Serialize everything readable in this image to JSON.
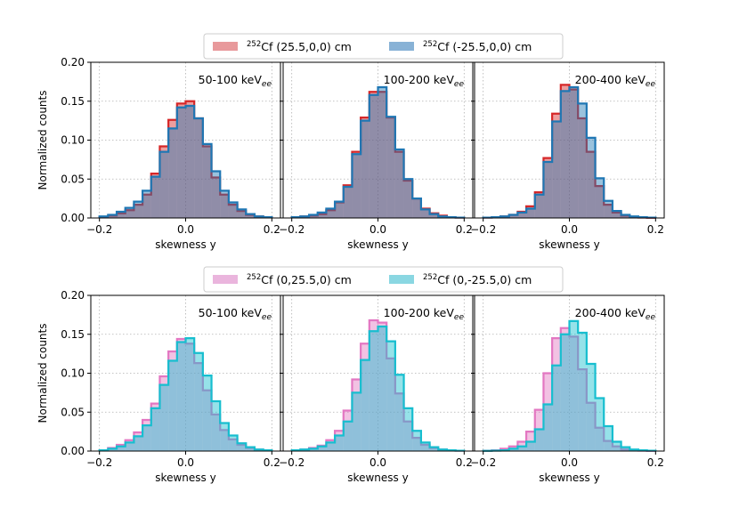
{
  "chart_data": {
    "type": "histogram",
    "shared": {
      "xlabel": "skewness y",
      "ylabel": "Normalized counts",
      "xlim": [
        -0.22,
        0.22
      ],
      "ylim": [
        0,
        0.2
      ],
      "xticks": [
        -0.2,
        0,
        0.2
      ],
      "xtick_labels": [
        "−0.2",
        "0.0",
        "0.2"
      ],
      "yticks": [
        0,
        0.05,
        0.1,
        0.15,
        0.2
      ],
      "ytick_labels": [
        "0.00",
        "0.05",
        "0.10",
        "0.15",
        "0.20"
      ],
      "grid": true,
      "bin_edges": [
        -0.2,
        -0.18,
        -0.16,
        -0.14,
        -0.12,
        -0.1,
        -0.08,
        -0.06,
        -0.04,
        -0.02,
        0,
        0.02,
        0.04,
        0.06,
        0.08,
        0.1,
        0.12,
        0.14,
        0.16,
        0.18,
        0.2
      ],
      "panel_titles": [
        "50-100 keV",
        "100-200 keV",
        "200-400 keV"
      ],
      "panel_title_subscript": "ee"
    },
    "rows": [
      {
        "legend": {
          "placement": "top-center",
          "entries": [
            {
              "sup": "252",
              "label": "Cf (25.5,0,0) cm",
              "face": "#e8999b",
              "edge": "#d62728"
            },
            {
              "sup": "252",
              "label": "Cf (-25.5,0,0) cm",
              "face": "#88b2d6",
              "edge": "#1f77b4"
            }
          ]
        },
        "panels": [
          {
            "series": [
              {
                "name": "252Cf (25.5,0,0) cm",
                "values": [
                  0.001,
                  0.003,
                  0.006,
                  0.01,
                  0.017,
                  0.03,
                  0.057,
                  0.092,
                  0.126,
                  0.147,
                  0.15,
                  0.128,
                  0.092,
                  0.052,
                  0.03,
                  0.017,
                  0.009,
                  0.004,
                  0.002,
                  0.001
                ]
              },
              {
                "name": "252Cf (-25.5,0,0) cm",
                "values": [
                  0.002,
                  0.004,
                  0.008,
                  0.013,
                  0.021,
                  0.035,
                  0.053,
                  0.085,
                  0.115,
                  0.142,
                  0.144,
                  0.128,
                  0.095,
                  0.06,
                  0.035,
                  0.02,
                  0.011,
                  0.005,
                  0.002,
                  0.001
                ]
              }
            ]
          },
          {
            "series": [
              {
                "name": "252Cf (25.5,0,0) cm",
                "values": [
                  0.001,
                  0.002,
                  0.003,
                  0.005,
                  0.01,
                  0.02,
                  0.042,
                  0.085,
                  0.129,
                  0.162,
                  0.162,
                  0.129,
                  0.085,
                  0.048,
                  0.025,
                  0.012,
                  0.006,
                  0.003,
                  0.001,
                  0.0005
                ]
              },
              {
                "name": "252Cf (-25.5,0,0) cm",
                "values": [
                  0.001,
                  0.002,
                  0.004,
                  0.007,
                  0.012,
                  0.021,
                  0.04,
                  0.082,
                  0.125,
                  0.158,
                  0.168,
                  0.13,
                  0.088,
                  0.05,
                  0.025,
                  0.011,
                  0.005,
                  0.002,
                  0.001,
                  0.0005
                ]
              }
            ]
          },
          {
            "series": [
              {
                "name": "252Cf (25.5,0,0) cm",
                "values": [
                  0.0005,
                  0.001,
                  0.002,
                  0.004,
                  0.008,
                  0.015,
                  0.033,
                  0.077,
                  0.134,
                  0.171,
                  0.165,
                  0.128,
                  0.085,
                  0.041,
                  0.017,
                  0.007,
                  0.003,
                  0.001,
                  0.0005,
                  0.0002
                ]
              },
              {
                "name": "252Cf (-25.5,0,0) cm",
                "values": [
                  0.0005,
                  0.001,
                  0.002,
                  0.004,
                  0.007,
                  0.012,
                  0.03,
                  0.072,
                  0.124,
                  0.163,
                  0.168,
                  0.147,
                  0.103,
                  0.051,
                  0.022,
                  0.009,
                  0.004,
                  0.002,
                  0.001,
                  0.0005
                ]
              }
            ]
          }
        ]
      },
      {
        "legend": {
          "placement": "top-center",
          "entries": [
            {
              "sup": "252",
              "label": "Cf (0,25.5,0) cm",
              "face": "#eab5dd",
              "edge": "#e377c2"
            },
            {
              "sup": "252",
              "label": "Cf (0,-25.5,0) cm",
              "face": "#8ad7e2",
              "edge": "#17becf"
            }
          ]
        },
        "panels": [
          {
            "series": [
              {
                "name": "252Cf (0,25.5,0) cm",
                "values": [
                  0.001,
                  0.004,
                  0.008,
                  0.014,
                  0.024,
                  0.04,
                  0.061,
                  0.096,
                  0.128,
                  0.144,
                  0.138,
                  0.113,
                  0.078,
                  0.047,
                  0.027,
                  0.015,
                  0.008,
                  0.004,
                  0.002,
                  0.001
                ]
              },
              {
                "name": "252Cf (0,-25.5,0) cm",
                "values": [
                  0.001,
                  0.003,
                  0.006,
                  0.011,
                  0.019,
                  0.033,
                  0.055,
                  0.085,
                  0.116,
                  0.14,
                  0.145,
                  0.126,
                  0.097,
                  0.064,
                  0.036,
                  0.02,
                  0.01,
                  0.005,
                  0.002,
                  0.001
                ]
              }
            ]
          },
          {
            "series": [
              {
                "name": "252Cf (0,25.5,0) cm",
                "values": [
                  0.001,
                  0.002,
                  0.004,
                  0.007,
                  0.014,
                  0.026,
                  0.052,
                  0.092,
                  0.138,
                  0.168,
                  0.165,
                  0.119,
                  0.074,
                  0.038,
                  0.017,
                  0.008,
                  0.004,
                  0.002,
                  0.001,
                  0.0005
                ]
              },
              {
                "name": "252Cf (0,-25.5,0) cm",
                "values": [
                  0.001,
                  0.002,
                  0.003,
                  0.006,
                  0.011,
                  0.02,
                  0.038,
                  0.075,
                  0.117,
                  0.154,
                  0.16,
                  0.141,
                  0.098,
                  0.055,
                  0.026,
                  0.011,
                  0.005,
                  0.002,
                  0.001,
                  0.0005
                ]
              }
            ]
          },
          {
            "series": [
              {
                "name": "252Cf (0,25.5,0) cm",
                "values": [
                  0.0005,
                  0.001,
                  0.003,
                  0.006,
                  0.012,
                  0.025,
                  0.053,
                  0.1,
                  0.145,
                  0.158,
                  0.147,
                  0.105,
                  0.062,
                  0.03,
                  0.013,
                  0.006,
                  0.002,
                  0.001,
                  0.0005,
                  0.0002
                ]
              },
              {
                "name": "252Cf (0,-25.5,0) cm",
                "values": [
                  0.0003,
                  0.0006,
                  0.001,
                  0.003,
                  0.006,
                  0.012,
                  0.028,
                  0.06,
                  0.11,
                  0.15,
                  0.167,
                  0.152,
                  0.112,
                  0.068,
                  0.032,
                  0.012,
                  0.005,
                  0.002,
                  0.001,
                  0.0005
                ]
              }
            ]
          }
        ]
      }
    ]
  }
}
